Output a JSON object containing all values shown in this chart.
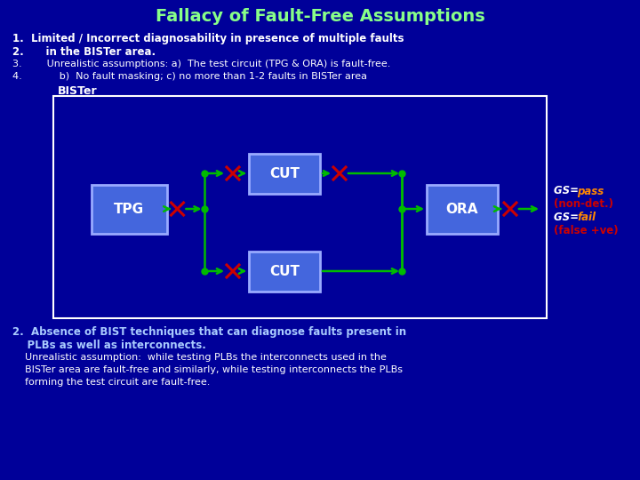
{
  "bg_color": "#000099",
  "title": "Fallacy of Fault-Free Assumptions",
  "title_color": "#88FF88",
  "title_fontsize": 14,
  "line1": "1.  Limited / Incorrect diagnosability in presence of multiple faults",
  "line2": "2.      in the BISTer area.",
  "line3": "3.        Unrealistic assumptions: a)  The test circuit (TPG & ORA) is fault-free.",
  "line4": "4.            b)  No fault masking; c) no more than 1-2 faults in BISTer area",
  "bister_label": "BISTer",
  "box_bg": "#4466DD",
  "box_border": "#99AAFF",
  "tpg_label": "TPG",
  "cut_label": "CUT",
  "ora_label": "ORA",
  "arrow_color": "#00BB00",
  "cross_color": "#CC0000",
  "white": "#FFFFFF",
  "gs_text_color": "#CC0000",
  "gs_pass_color": "#FF8800",
  "gs_fail_color": "#FF8800",
  "s2_bold1": "2.  Absence of BIST techniques that can diagnose faults present in",
  "s2_bold2": "    PLBs as well as interconnects.",
  "s2_norm1": "    Unrealistic assumption:  while testing PLBs the interconnects used in the",
  "s2_norm2": "    BISTer area are fault-free and similarly, while testing interconnects the PLBs",
  "s2_norm3": "    forming the test circuit are fault-free.",
  "light_blue": "#AACCFF"
}
